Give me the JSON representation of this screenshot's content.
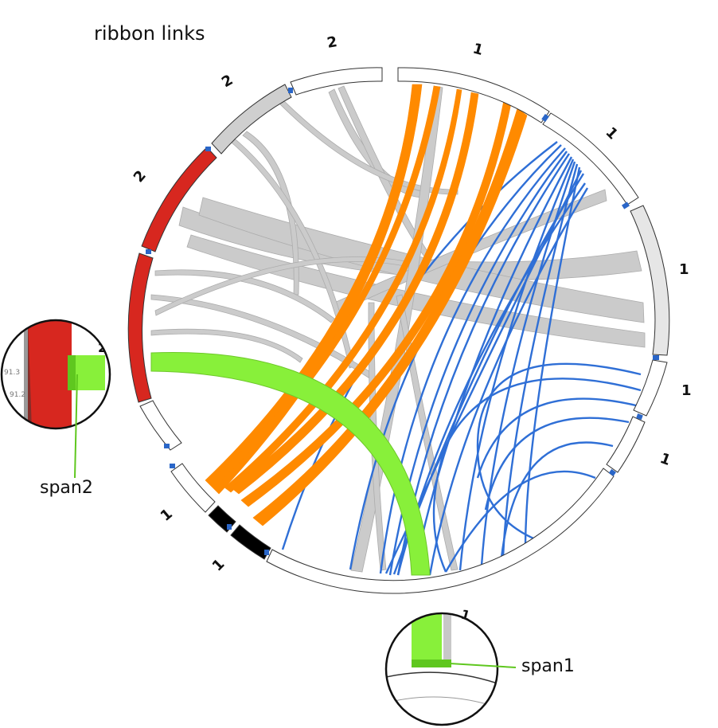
{
  "title": "ribbon links",
  "callouts": {
    "span1": "span1",
    "span2": "span2"
  },
  "segment_labels": [
    "1",
    "1",
    "1",
    "1",
    "1",
    "1",
    "1",
    "2",
    "2",
    "2",
    "2"
  ],
  "zoom_labels": {
    "left": "2",
    "right": "1",
    "left_ticks": [
      "91.3",
      "91.2"
    ]
  },
  "colors": {
    "orange": "#ff8a00",
    "blue": "#2f6fd6",
    "gray": "#c8c8c8",
    "green": "#88f03a",
    "red": "#d7271f",
    "black": "#000000",
    "light": "#e6e6e6",
    "marker": "#2a66c8"
  }
}
